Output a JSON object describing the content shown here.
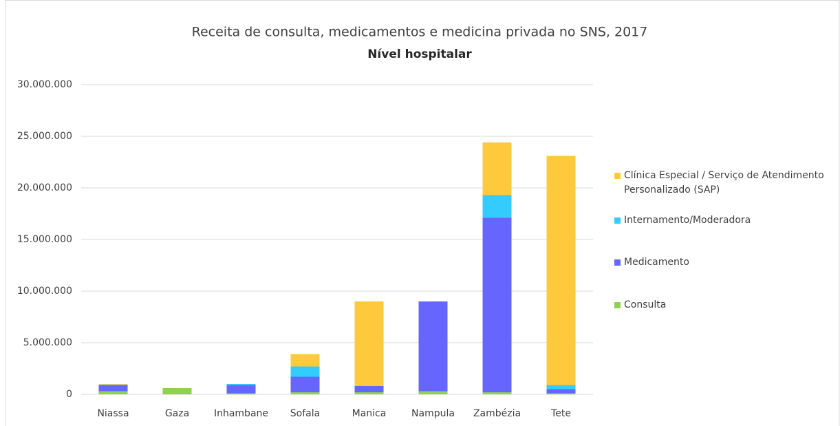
{
  "chart_data": {
    "type": "bar",
    "stacked": true,
    "title": "Receita de consulta, medicamentos e medicina privada no SNS, 2017",
    "subtitle": "Nível hospitalar",
    "categories": [
      "Niassa",
      "Gaza",
      "Inhambane",
      "Sofala",
      "Manica",
      "Nampula",
      "Zambézia",
      "Tete"
    ],
    "series": [
      {
        "name": "Consulta",
        "color": "#92d050",
        "values": [
          300000,
          600000,
          100000,
          200000,
          200000,
          300000,
          200000,
          100000
        ]
      },
      {
        "name": "Medicamento",
        "color": "#6666ff",
        "values": [
          600000,
          0,
          800000,
          1500000,
          600000,
          8700000,
          16900000,
          400000
        ]
      },
      {
        "name": "Internamento/Moderadora",
        "color": "#33ccff",
        "values": [
          50000,
          0,
          100000,
          1000000,
          0,
          0,
          2200000,
          400000
        ]
      },
      {
        "name": "Clínica Especial / Serviço de Atendimento Personalizado (SAP)",
        "color": "#ffc93c",
        "values": [
          50000,
          0,
          0,
          1200000,
          8200000,
          0,
          5100000,
          22200000
        ]
      }
    ],
    "ylim": [
      0,
      30000000
    ],
    "yticks": [
      0,
      {
        "value": 5000000,
        "label": "5.000.000"
      },
      {
        "value": 10000000,
        "label": "10.000.000"
      },
      {
        "value": 15000000,
        "label": "15.000.000"
      },
      {
        "value": 20000000,
        "label": "20.000.000"
      },
      {
        "value": 25000000,
        "label": "25.000.000"
      },
      {
        "value": 30000000,
        "label": "30.000.000"
      }
    ],
    "grid": true,
    "legend": "right"
  }
}
